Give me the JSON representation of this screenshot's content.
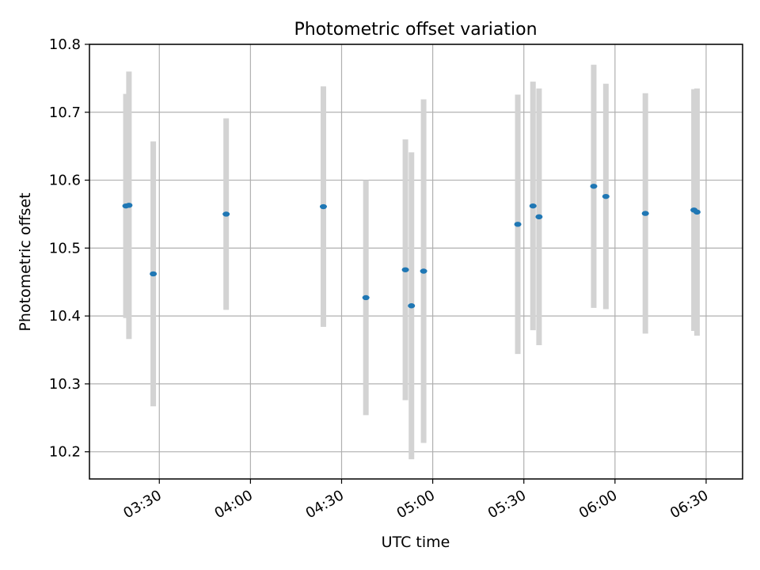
{
  "chart_data": {
    "type": "scatter",
    "title": "Photometric offset variation",
    "xlabel": "UTC time",
    "ylabel": "Photometric offset",
    "grid": true,
    "xlim": [
      "03:07",
      "06:42"
    ],
    "ylim": [
      10.16,
      10.8
    ],
    "xticks": [
      "03:30",
      "04:00",
      "04:30",
      "05:00",
      "05:30",
      "06:00",
      "06:30"
    ],
    "yticks": [
      10.2,
      10.3,
      10.4,
      10.5,
      10.6,
      10.7,
      10.8
    ],
    "points_color": "#1f77b4",
    "errorbar_color": "#d3d3d3",
    "points": [
      {
        "x": "03:19",
        "y": 10.562,
        "err": 0.165
      },
      {
        "x": "03:20",
        "y": 10.563,
        "err": 0.197
      },
      {
        "x": "03:28",
        "y": 10.462,
        "err": 0.195
      },
      {
        "x": "03:52",
        "y": 10.55,
        "err": 0.141
      },
      {
        "x": "04:24",
        "y": 10.561,
        "err": 0.177
      },
      {
        "x": "04:38",
        "y": 10.427,
        "err": 0.173
      },
      {
        "x": "04:51",
        "y": 10.468,
        "err": 0.192
      },
      {
        "x": "04:53",
        "y": 10.415,
        "err": 0.226
      },
      {
        "x": "04:57",
        "y": 10.466,
        "err": 0.253
      },
      {
        "x": "05:28",
        "y": 10.535,
        "err": 0.191
      },
      {
        "x": "05:33",
        "y": 10.562,
        "err": 0.183
      },
      {
        "x": "05:35",
        "y": 10.546,
        "err": 0.189
      },
      {
        "x": "05:53",
        "y": 10.591,
        "err": 0.179
      },
      {
        "x": "05:57",
        "y": 10.576,
        "err": 0.166
      },
      {
        "x": "06:10",
        "y": 10.551,
        "err": 0.177
      },
      {
        "x": "06:26",
        "y": 10.556,
        "err": 0.178
      },
      {
        "x": "06:27",
        "y": 10.553,
        "err": 0.182
      }
    ]
  }
}
